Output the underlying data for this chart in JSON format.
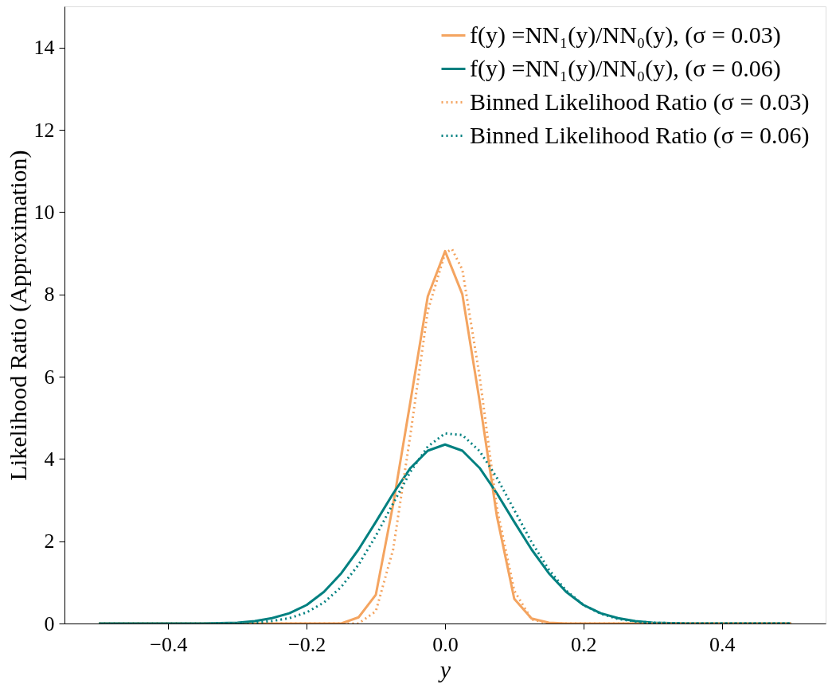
{
  "chart_data": {
    "type": "line",
    "xlabel": "y",
    "ylabel": "Likelihood Ratio (Approximation)",
    "xlim": [
      -0.55,
      0.55
    ],
    "ylim": [
      0,
      15
    ],
    "xticks": [
      {
        "value": -0.4,
        "label": "−0.4"
      },
      {
        "value": -0.2,
        "label": "−0.2"
      },
      {
        "value": 0,
        "label": "0.0"
      },
      {
        "value": 0.2,
        "label": "0.2"
      },
      {
        "value": 0.4,
        "label": "0.4"
      }
    ],
    "yticks": [
      0,
      2,
      4,
      6,
      8,
      10,
      12,
      14
    ],
    "grid": false,
    "legend": "top right",
    "marker": "none",
    "series": [
      {
        "name": "f(y) =NN₁(y)/NN₀(y), (σ = 0.03)",
        "color": "#f4a460",
        "line_style": "solid",
        "x": [
          -0.5,
          -0.2,
          -0.15,
          -0.125,
          -0.1,
          -0.075,
          -0.05,
          -0.025,
          0,
          0.025,
          0.05,
          0.075,
          0.1,
          0.125,
          0.15,
          0.175,
          0.2,
          0.5
        ],
        "values": [
          0,
          0,
          0,
          0.15,
          0.7,
          2.9,
          5.4,
          7.95,
          9.05,
          8.0,
          5.4,
          2.6,
          0.6,
          0.12,
          0.02,
          0,
          0,
          0
        ]
      },
      {
        "name": "f(y) =NN₁(y)/NN₀(y), (σ = 0.06)",
        "color": "#008080",
        "line_style": "solid",
        "x": [
          -0.5,
          -0.35,
          -0.3,
          -0.275,
          -0.25,
          -0.225,
          -0.2,
          -0.175,
          -0.15,
          -0.125,
          -0.1,
          -0.075,
          -0.05,
          -0.025,
          0,
          0.025,
          0.05,
          0.075,
          0.1,
          0.125,
          0.15,
          0.175,
          0.2,
          0.225,
          0.25,
          0.275,
          0.3,
          0.35,
          0.5
        ],
        "values": [
          0,
          0,
          0.02,
          0.06,
          0.13,
          0.25,
          0.45,
          0.77,
          1.22,
          1.8,
          2.47,
          3.16,
          3.78,
          4.2,
          4.35,
          4.2,
          3.78,
          3.16,
          2.47,
          1.8,
          1.22,
          0.77,
          0.45,
          0.25,
          0.13,
          0.06,
          0.02,
          0,
          0
        ]
      },
      {
        "name": "Binned Likelihood Ratio (σ = 0.03)",
        "color": "#f4a460",
        "line_style": "dotted",
        "x": [
          -0.5,
          -0.2,
          -0.125,
          -0.1,
          -0.075,
          -0.05,
          -0.025,
          0,
          0.01,
          0.025,
          0.05,
          0.075,
          0.1,
          0.125,
          0.15,
          0.2,
          0.5
        ],
        "values": [
          0,
          0,
          0,
          0.3,
          1.8,
          4.6,
          7.6,
          9.0,
          9.1,
          8.6,
          6.0,
          2.8,
          0.8,
          0.1,
          0,
          0,
          0
        ]
      },
      {
        "name": "Binned Likelihood Ratio (σ = 0.06)",
        "color": "#008080",
        "line_style": "dotted",
        "x": [
          -0.5,
          -0.35,
          -0.3,
          -0.275,
          -0.25,
          -0.225,
          -0.2,
          -0.175,
          -0.15,
          -0.125,
          -0.1,
          -0.075,
          -0.05,
          -0.025,
          0,
          0.025,
          0.05,
          0.075,
          0.1,
          0.125,
          0.15,
          0.175,
          0.2,
          0.225,
          0.25,
          0.275,
          0.3,
          0.35,
          0.5
        ],
        "values": [
          0,
          0,
          0,
          0.02,
          0.06,
          0.13,
          0.27,
          0.51,
          0.89,
          1.43,
          2.13,
          2.92,
          3.69,
          4.3,
          4.62,
          4.58,
          4.19,
          3.54,
          2.76,
          1.98,
          1.31,
          0.8,
          0.45,
          0.24,
          0.11,
          0.05,
          0.02,
          0,
          0
        ]
      }
    ]
  }
}
